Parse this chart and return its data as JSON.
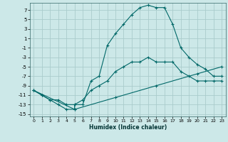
{
  "xlabel": "Humidex (Indice chaleur)",
  "background_color": "#cce8e8",
  "grid_color": "#aacccc",
  "line_color": "#006868",
  "xlim": [
    -0.5,
    23.5
  ],
  "ylim": [
    -15.5,
    8.5
  ],
  "yticks": [
    -15,
    -13,
    -11,
    -9,
    -7,
    -5,
    -3,
    -1,
    1,
    3,
    5,
    7
  ],
  "xticks": [
    0,
    1,
    2,
    3,
    4,
    5,
    6,
    7,
    8,
    9,
    10,
    11,
    12,
    13,
    14,
    15,
    16,
    17,
    18,
    19,
    20,
    21,
    22,
    23
  ],
  "line1_x": [
    0,
    1,
    2,
    3,
    4,
    5,
    5,
    6,
    7,
    8,
    9,
    10,
    11,
    12,
    13,
    14,
    15,
    16,
    17,
    18,
    19,
    20,
    21,
    22,
    23
  ],
  "line1_y": [
    -10,
    -11,
    -12,
    -13,
    -14,
    -14,
    -13,
    -13,
    -8,
    -7,
    -0.5,
    2,
    4,
    6,
    7.5,
    8,
    7.5,
    7.5,
    4,
    -1,
    -3,
    -4.5,
    -5.5,
    -7,
    -7
  ],
  "line2_x": [
    0,
    1,
    2,
    3,
    4,
    5,
    6,
    7,
    8,
    9,
    10,
    11,
    12,
    13,
    14,
    15,
    16,
    17,
    18,
    19,
    20,
    21,
    22,
    23
  ],
  "line2_y": [
    -10,
    -11,
    -12,
    -12,
    -13,
    -13,
    -12,
    -10,
    -9,
    -8,
    -6,
    -5,
    -4,
    -4,
    -3,
    -4,
    -4,
    -4,
    -6,
    -7,
    -8,
    -8,
    -8,
    -8
  ],
  "line3_x": [
    0,
    5,
    10,
    15,
    20,
    23
  ],
  "line3_y": [
    -10,
    -14,
    -11.5,
    -9,
    -6.5,
    -5
  ]
}
